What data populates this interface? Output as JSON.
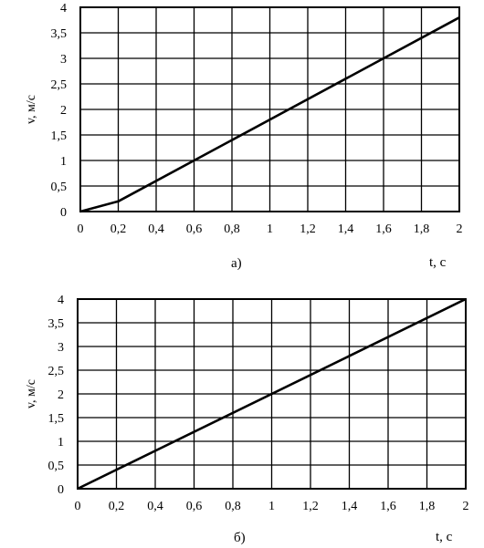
{
  "chart_data": [
    {
      "type": "line",
      "panel_label": "а)",
      "xlabel": "t, с",
      "ylabel": "v, м/с",
      "x_ticks": [
        "0",
        "0,2",
        "0,4",
        "0,6",
        "0,8",
        "1",
        "1,2",
        "1,4",
        "1,6",
        "1,8",
        "2"
      ],
      "y_ticks": [
        "0",
        "0,5",
        "1",
        "1,5",
        "2",
        "2,5",
        "3",
        "3,5",
        "4"
      ],
      "xlim": [
        0,
        2
      ],
      "ylim": [
        0,
        4
      ],
      "grid": true,
      "series": [
        {
          "x": [
            0,
            0.2,
            2
          ],
          "y": [
            0,
            0.2,
            3.8
          ]
        }
      ]
    },
    {
      "type": "line",
      "panel_label": "б)",
      "xlabel": "t, с",
      "ylabel": "v, м/с",
      "x_ticks": [
        "0",
        "0,2",
        "0,4",
        "0,6",
        "0,8",
        "1",
        "1,2",
        "1,4",
        "1,6",
        "1,8",
        "2"
      ],
      "y_ticks": [
        "0",
        "0,5",
        "1",
        "1,5",
        "2",
        "2,5",
        "3",
        "3,5",
        "4"
      ],
      "xlim": [
        0,
        2
      ],
      "ylim": [
        0,
        4
      ],
      "grid": true,
      "series": [
        {
          "x": [
            0,
            2
          ],
          "y": [
            0,
            4
          ]
        }
      ]
    }
  ]
}
